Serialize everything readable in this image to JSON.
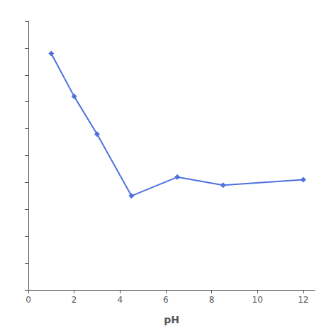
{
  "chart_data": {
    "type": "line",
    "x": [
      1,
      2,
      3,
      4.5,
      6.5,
      8.5,
      12
    ],
    "values": [
      88,
      72,
      58,
      35,
      42,
      39,
      41
    ],
    "xlabel": "pH",
    "xlim": [
      0,
      12.5
    ],
    "ylim": [
      0,
      100
    ],
    "xticks": [
      0,
      2,
      4,
      6,
      8,
      10,
      12
    ],
    "yticks": [
      0,
      10,
      20,
      30,
      40,
      50,
      60,
      70,
      80,
      90,
      100
    ],
    "tick_labels": "x",
    "marker": "diamond",
    "grid": false
  }
}
